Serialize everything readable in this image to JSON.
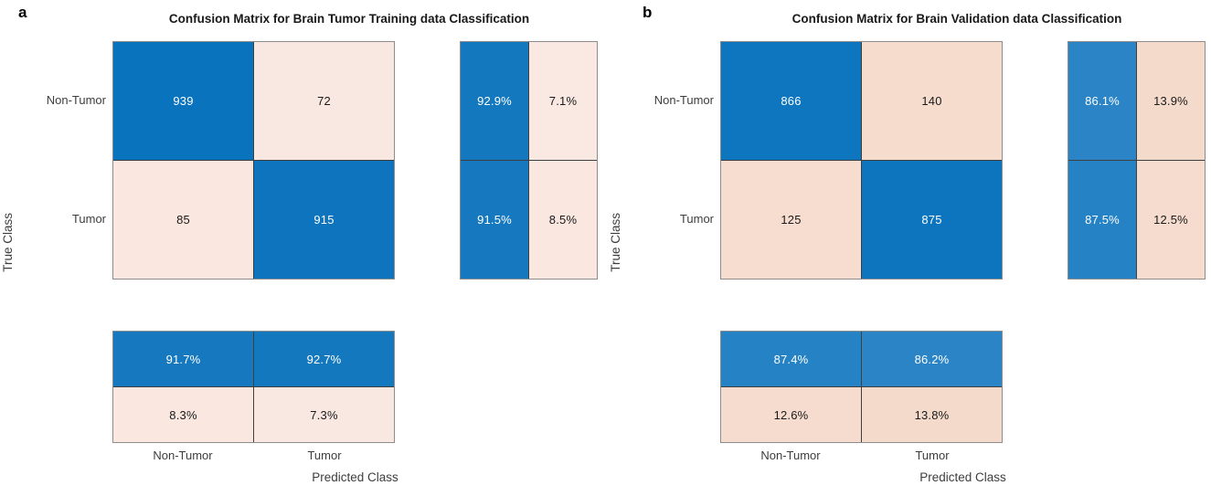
{
  "chart_data": [
    {
      "type": "heatmap",
      "subtype": "confusion-matrix",
      "panel_letter": "a",
      "title": "Confusion Matrix for Brain Tumor Training data Classification",
      "xlabel": "Predicted Class",
      "ylabel": "True Class",
      "classes": [
        "Non-Tumor",
        "Tumor"
      ],
      "matrix": [
        [
          939,
          72
        ],
        [
          85,
          915
        ]
      ],
      "row_summary_pct": [
        [
          92.9,
          7.1
        ],
        [
          91.5,
          8.5
        ]
      ],
      "col_summary_pct": [
        [
          91.7,
          92.7
        ],
        [
          8.3,
          7.3
        ]
      ],
      "diagonal_color": "#0a73be",
      "off_diagonal_color": "#f9e8e1",
      "legend_position": "none"
    },
    {
      "type": "heatmap",
      "subtype": "confusion-matrix",
      "panel_letter": "b",
      "title": "Confusion Matrix for Brain Validation data Classification",
      "xlabel": "Predicted Class",
      "ylabel": "True Class",
      "classes": [
        "Non-Tumor",
        "Tumor"
      ],
      "matrix": [
        [
          866,
          140
        ],
        [
          125,
          875
        ]
      ],
      "row_summary_pct": [
        [
          86.1,
          13.9
        ],
        [
          87.5,
          12.5
        ]
      ],
      "col_summary_pct": [
        [
          87.4,
          86.2
        ],
        [
          12.6,
          13.8
        ]
      ],
      "diagonal_color": "#0e76bf",
      "off_diagonal_color": "#f5dccd",
      "legend_position": "none"
    }
  ],
  "panels": [
    {
      "letter": "a",
      "title": "Confusion Matrix for Brain Tumor Training data Classification",
      "x_label": "Predicted Class",
      "y_label": "True Class",
      "row_classes": [
        "Non-Tumor",
        "Tumor"
      ],
      "col_classes": [
        "Non-Tumor",
        "Tumor"
      ],
      "main_cells": [
        {
          "text": "939",
          "bg": "#0a73be",
          "fg": "#ffffff"
        },
        {
          "text": "72",
          "bg": "#f9e8e1",
          "fg": "#1a1a1a"
        },
        {
          "text": "85",
          "bg": "#f9e7e0",
          "fg": "#1a1a1a"
        },
        {
          "text": "915",
          "bg": "#0d74bd",
          "fg": "#ffffff"
        }
      ],
      "row_summary_cells": [
        {
          "text": "92.9%",
          "bg": "#1478be",
          "fg": "#ffffff"
        },
        {
          "text": "7.1%",
          "bg": "#fae9e2",
          "fg": "#1a1a1a"
        },
        {
          "text": "91.5%",
          "bg": "#1679bf",
          "fg": "#ffffff"
        },
        {
          "text": "8.5%",
          "bg": "#f9e7e0",
          "fg": "#1a1a1a"
        }
      ],
      "col_summary_cells": [
        {
          "text": "91.7%",
          "bg": "#1679bf",
          "fg": "#ffffff"
        },
        {
          "text": "92.7%",
          "bg": "#1478be",
          "fg": "#ffffff"
        },
        {
          "text": "8.3%",
          "bg": "#f9e7e0",
          "fg": "#1a1a1a"
        },
        {
          "text": "7.3%",
          "bg": "#f9e8e1",
          "fg": "#1a1a1a"
        }
      ]
    },
    {
      "letter": "b",
      "title": "Confusion Matrix for Brain Validation data Classification",
      "x_label": "Predicted Class",
      "y_label": "True Class",
      "row_classes": [
        "Non-Tumor",
        "Tumor"
      ],
      "col_classes": [
        "Non-Tumor",
        "Tumor"
      ],
      "main_cells": [
        {
          "text": "866",
          "bg": "#0e76bf",
          "fg": "#ffffff"
        },
        {
          "text": "140",
          "bg": "#f5dccd",
          "fg": "#1a1a1a"
        },
        {
          "text": "125",
          "bg": "#f6ddd0",
          "fg": "#1a1a1a"
        },
        {
          "text": "875",
          "bg": "#0d75be",
          "fg": "#ffffff"
        }
      ],
      "row_summary_cells": [
        {
          "text": "86.1%",
          "bg": "#2b84c6",
          "fg": "#ffffff"
        },
        {
          "text": "13.9%",
          "bg": "#f4dacb",
          "fg": "#1a1a1a"
        },
        {
          "text": "87.5%",
          "bg": "#2582c4",
          "fg": "#ffffff"
        },
        {
          "text": "12.5%",
          "bg": "#f5dcce",
          "fg": "#1a1a1a"
        }
      ],
      "col_summary_cells": [
        {
          "text": "87.4%",
          "bg": "#2582c4",
          "fg": "#ffffff"
        },
        {
          "text": "86.2%",
          "bg": "#2b84c6",
          "fg": "#ffffff"
        },
        {
          "text": "12.6%",
          "bg": "#f5dcce",
          "fg": "#1a1a1a"
        },
        {
          "text": "13.8%",
          "bg": "#f4dacb",
          "fg": "#1a1a1a"
        }
      ]
    }
  ]
}
